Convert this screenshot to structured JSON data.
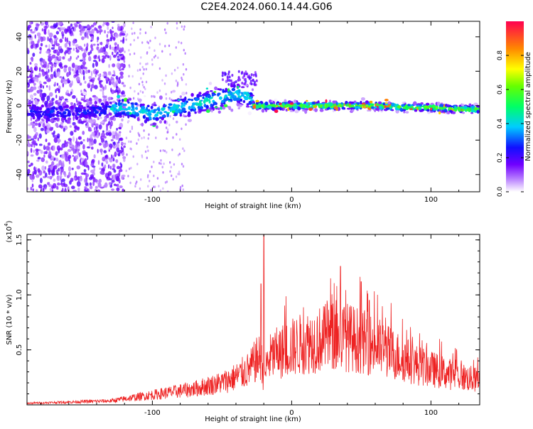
{
  "title": "C2E4.2024.060.14.44.G06",
  "chart_data": [
    {
      "type": "heatmap",
      "xlabel": "Height of straight line (km)",
      "ylabel": "Frequency (Hz)",
      "xlim": [
        -190,
        135
      ],
      "ylim": [
        -50,
        49
      ],
      "x_ticks": [
        -100,
        0,
        100
      ],
      "y_ticks": [
        -40,
        -20,
        0,
        20,
        40
      ],
      "ridge": {
        "x": [
          -190,
          -160,
          -140,
          -120,
          -100,
          -80,
          -60,
          -50,
          -40,
          -30,
          -28,
          -25,
          -20,
          0,
          20,
          40,
          60,
          80,
          100,
          120,
          135
        ],
        "frequency": [
          -4,
          -4,
          -3,
          -1,
          -5,
          -1,
          3,
          5,
          7,
          5,
          0,
          0,
          0,
          0,
          0,
          0,
          0,
          -1,
          -1,
          -2,
          -2
        ]
      },
      "colorbar": {
        "label": "Normalized spectral amplitude",
        "range": [
          0,
          1
        ],
        "ticks": [
          "0.0",
          "0.2",
          "0.4",
          "0.6",
          "0.8"
        ]
      }
    },
    {
      "type": "line",
      "xlabel": "Height of straight line (km)",
      "ylabel": "SNR (10 * v/v)",
      "multiplier_label": "(x10",
      "multiplier_exp": "4",
      "multiplier_close": ")",
      "xlim": [
        -190,
        135
      ],
      "ylim": [
        0,
        1.55
      ],
      "x_ticks": [
        -100,
        0,
        100
      ],
      "y_ticks": [
        "0.5",
        "1.0",
        "1.5"
      ],
      "series_color": "#ee2222",
      "envelope": {
        "x": [
          -190,
          -170,
          -150,
          -130,
          -110,
          -90,
          -70,
          -50,
          -40,
          -30,
          -26,
          -22,
          -20,
          -18,
          -15,
          -10,
          0,
          10,
          20,
          30,
          40,
          50,
          60,
          70,
          80,
          90,
          100,
          110,
          120,
          130,
          135
        ],
        "snr": [
          0.02,
          0.03,
          0.04,
          0.05,
          0.1,
          0.15,
          0.2,
          0.28,
          0.35,
          0.45,
          0.55,
          0.6,
          0.3,
          0.5,
          0.6,
          0.65,
          0.72,
          0.78,
          0.82,
          0.86,
          0.85,
          0.8,
          0.74,
          0.66,
          0.58,
          0.5,
          0.45,
          0.4,
          0.36,
          0.32,
          0.3
        ]
      },
      "peaks": [
        {
          "x": -20,
          "snr": 1.55
        },
        {
          "x": -22,
          "snr": 1.1
        },
        {
          "x": 35,
          "snr": 1.26
        },
        {
          "x": 28,
          "snr": 1.15
        },
        {
          "x": 50,
          "snr": 1.12
        }
      ]
    }
  ]
}
